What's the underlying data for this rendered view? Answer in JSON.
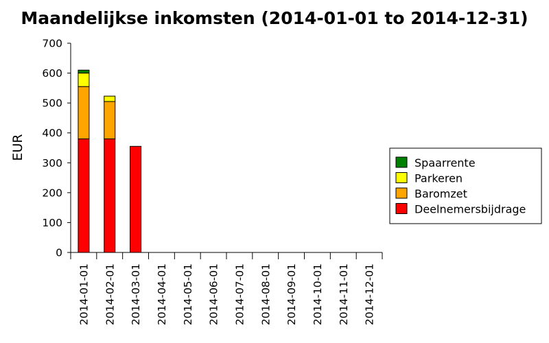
{
  "chart_data": {
    "type": "bar",
    "stacked": true,
    "title": "Maandelijkse inkomsten (2014-01-01 to 2014-12-31)",
    "xlabel": "",
    "ylabel": "EUR",
    "ylim": [
      0,
      700
    ],
    "yticks": [
      0,
      100,
      200,
      300,
      400,
      500,
      600,
      700
    ],
    "grid": false,
    "legend_position": "right",
    "categories": [
      "2014-01-01",
      "2014-02-01",
      "2014-03-01",
      "2014-04-01",
      "2014-05-01",
      "2014-06-01",
      "2014-07-01",
      "2014-08-01",
      "2014-09-01",
      "2014-10-01",
      "2014-11-01",
      "2014-12-01"
    ],
    "series": [
      {
        "name": "Deelnemersbijdrage",
        "color": "#ff0000",
        "values": [
          380,
          380,
          355,
          0,
          0,
          0,
          0,
          0,
          0,
          0,
          0,
          0
        ]
      },
      {
        "name": "Baromzet",
        "color": "#ffa500",
        "values": [
          175,
          125,
          0,
          0,
          0,
          0,
          0,
          0,
          0,
          0,
          0,
          0
        ]
      },
      {
        "name": "Parkeren",
        "color": "#ffff00",
        "values": [
          45,
          18,
          0,
          0,
          0,
          0,
          0,
          0,
          0,
          0,
          0,
          0
        ]
      },
      {
        "name": "Spaarrente",
        "color": "#008000",
        "values": [
          10,
          0,
          0,
          0,
          0,
          0,
          0,
          0,
          0,
          0,
          0,
          0
        ]
      }
    ]
  }
}
